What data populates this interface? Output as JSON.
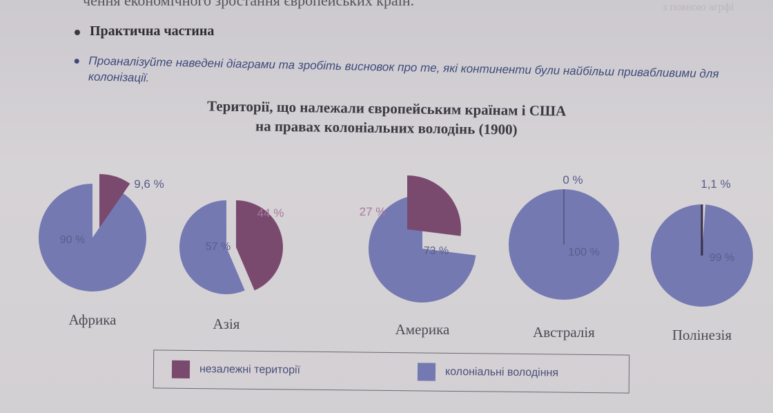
{
  "header": {
    "top_cut_text": "чення економічного зростання європейських країн.",
    "faded_right_text": "з повною агрфі"
  },
  "practical": {
    "label": "Практична частина"
  },
  "task": {
    "text": "Проаналізуйте наведені діаграми та зробіть висновок про те, які континенти були найбільш привабливими для колонізації."
  },
  "colors": {
    "independent": "#7a4a6e",
    "colonial": "#7479b2",
    "label": "#585b88"
  },
  "legend": {
    "independent_label": "незалежні території",
    "colonial_label": "колоніальні володіння"
  },
  "chart_data": {
    "type": "pie",
    "title": "Території, що належали європейським країнам і США на правах колоніальних володінь (1900)",
    "title_line1": "Території, що належали європейським країнам і США",
    "title_line2": "на правах колоніальних володінь (1900)",
    "series": [
      {
        "name": "незалежні території",
        "color": "#7a4a6e"
      },
      {
        "name": "колоніальні володіння",
        "color": "#7479b2"
      }
    ],
    "pies": [
      {
        "name": "Африка",
        "independent": 9.6,
        "colonial": 90,
        "independent_label": "9,6 %",
        "colonial_label": "90 %"
      },
      {
        "name": "Азія",
        "independent": 44,
        "colonial": 57,
        "independent_label": "44 %",
        "colonial_label": "57 %"
      },
      {
        "name": "Америка",
        "independent": 27,
        "colonial": 73,
        "independent_label": "27 %",
        "colonial_label": "73 %"
      },
      {
        "name": "Австралія",
        "independent": 0,
        "colonial": 100,
        "independent_label": "0 %",
        "colonial_label": "100 %"
      },
      {
        "name": "Полінезія",
        "independent": 1.1,
        "colonial": 99,
        "independent_label": "1,1 %",
        "colonial_label": "99 %"
      }
    ]
  }
}
